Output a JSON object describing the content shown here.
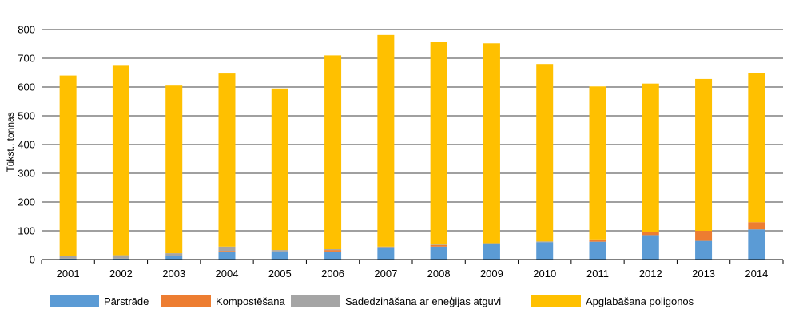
{
  "chart_data": {
    "type": "bar",
    "stacked": true,
    "categories": [
      "2001",
      "2002",
      "2003",
      "2004",
      "2005",
      "2006",
      "2007",
      "2008",
      "2009",
      "2010",
      "2011",
      "2012",
      "2013",
      "2014"
    ],
    "series": [
      {
        "name": "Pārstrāde",
        "color": "#5B9BD5",
        "values": [
          3,
          3,
          12,
          25,
          28,
          28,
          40,
          45,
          55,
          60,
          62,
          85,
          65,
          105
        ]
      },
      {
        "name": "Kompostēšana",
        "color": "#ED7D31",
        "values": [
          0,
          0,
          0,
          5,
          0,
          5,
          0,
          5,
          0,
          0,
          8,
          10,
          35,
          25
        ]
      },
      {
        "name": "Sadedzināšana ar eneģijas atguvi",
        "color": "#A5A5A5",
        "values": [
          10,
          12,
          10,
          15,
          5,
          3,
          5,
          2,
          2,
          3,
          0,
          0,
          0,
          0
        ]
      },
      {
        "name": "Apglabāšana poligonos",
        "color": "#FFC000",
        "values": [
          627,
          659,
          583,
          602,
          562,
          674,
          736,
          705,
          695,
          617,
          532,
          517,
          528,
          518
        ]
      }
    ],
    "ylabel": "Tūkst., tonnas",
    "xlabel": "",
    "ylim": [
      0,
      800
    ],
    "yticks": [
      0,
      100,
      200,
      300,
      400,
      500,
      600,
      700,
      800
    ],
    "grid": true,
    "legend": "bottom"
  }
}
